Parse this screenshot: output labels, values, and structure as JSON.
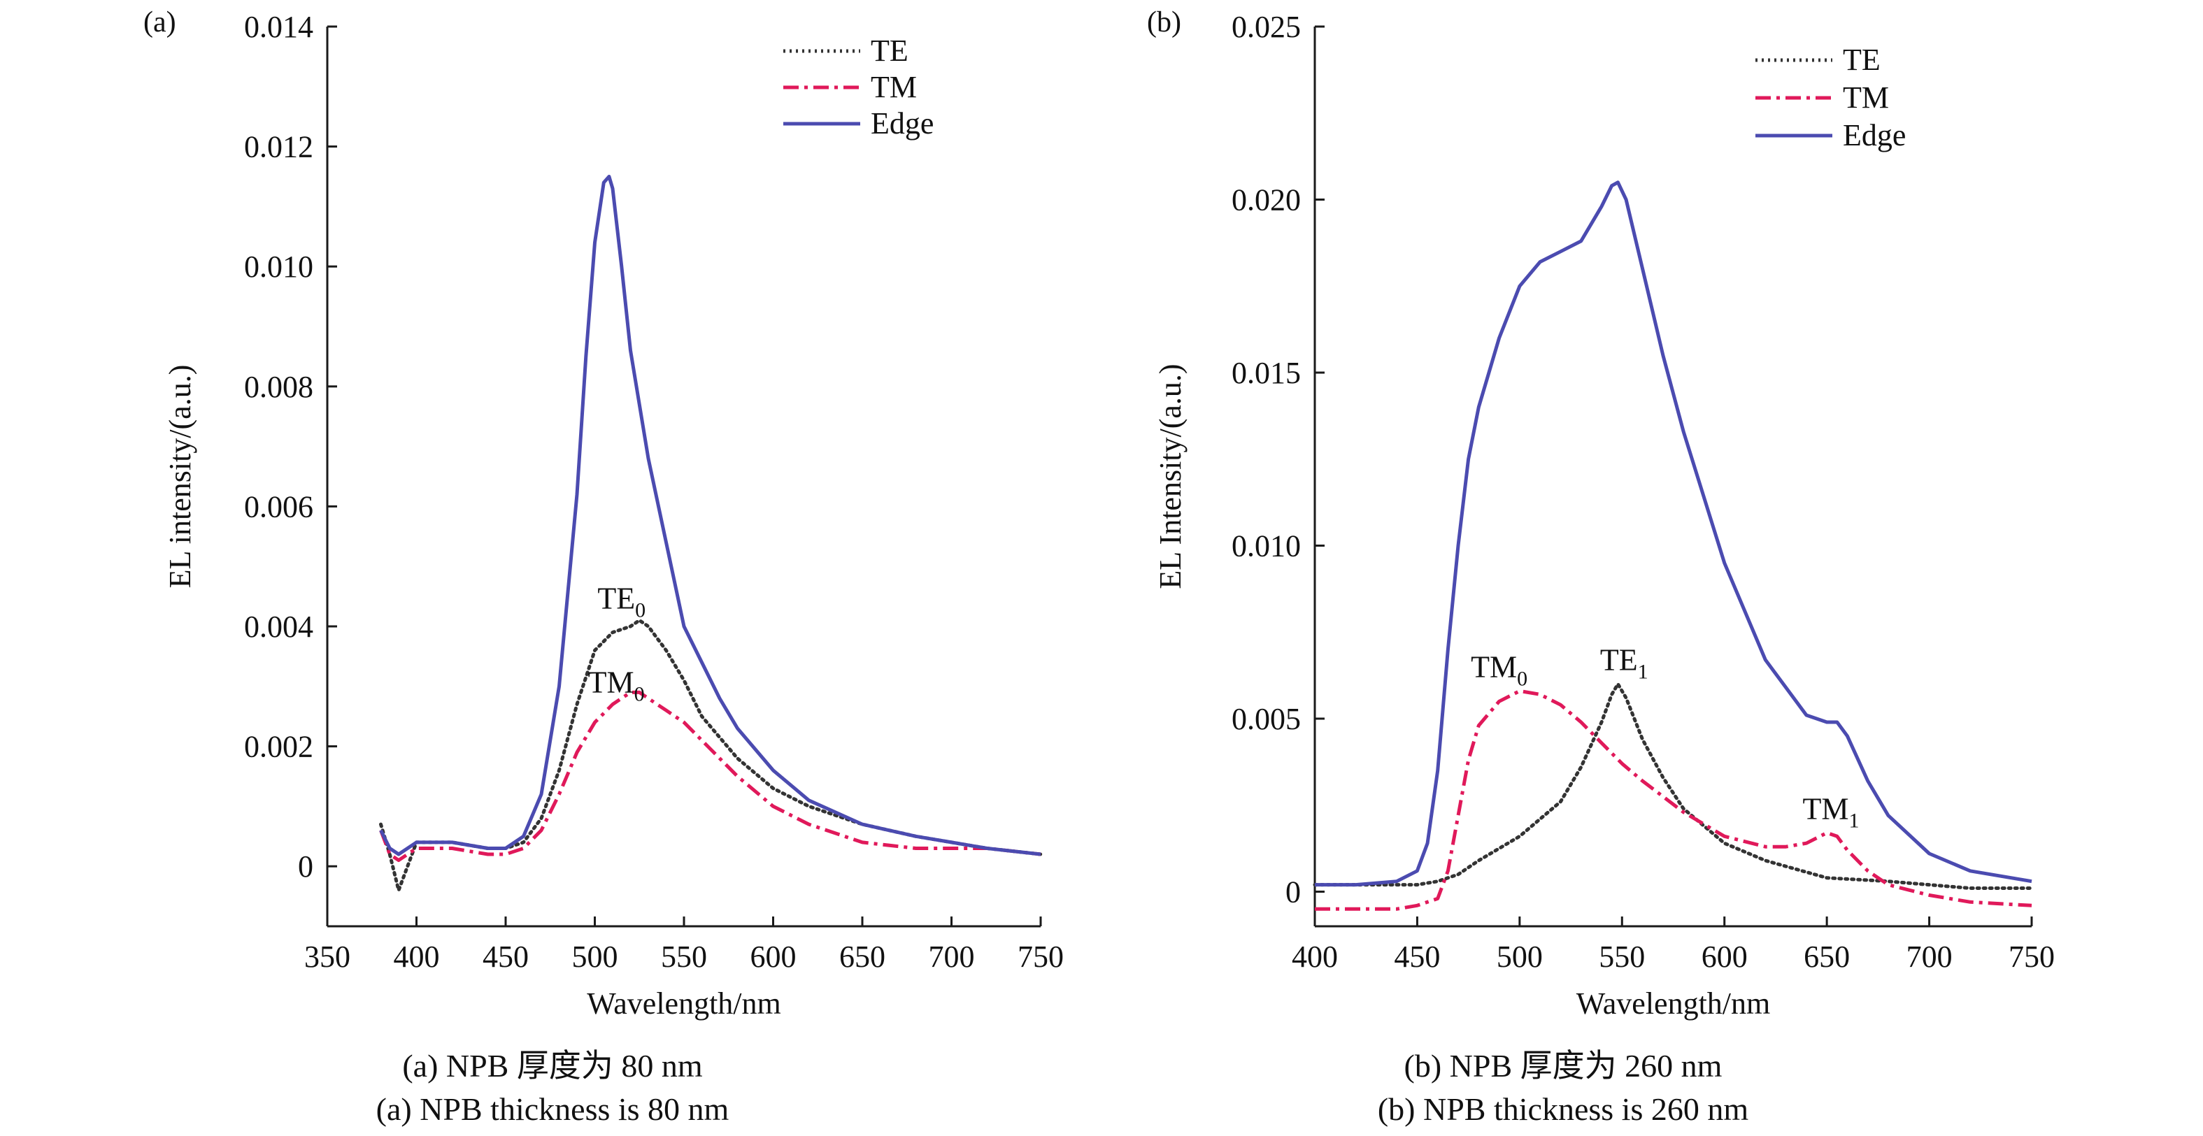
{
  "chart_data": [
    {
      "type": "line",
      "panel_label": "(a)",
      "xlabel": "Wavelength/nm",
      "ylabel": "EL intensity/(a.u.)",
      "xlim": [
        350,
        750
      ],
      "ylim": [
        -0.001,
        0.014
      ],
      "xticks": [
        "350",
        "400",
        "450",
        "500",
        "550",
        "600",
        "650",
        "700",
        "750"
      ],
      "xtick_values": [
        350,
        400,
        450,
        500,
        550,
        600,
        650,
        700,
        750
      ],
      "yticks": [
        "0",
        "0.002",
        "0.004",
        "0.006",
        "0.008",
        "0.010",
        "0.012",
        "0.014"
      ],
      "ytick_values": [
        0,
        0.002,
        0.004,
        0.006,
        0.008,
        0.01,
        0.012,
        0.014
      ],
      "grid": false,
      "legend": "top-right",
      "series": [
        {
          "name": "TE",
          "color": "#333333",
          "style": "dotted",
          "x": [
            380,
            385,
            390,
            400,
            420,
            440,
            450,
            460,
            470,
            480,
            490,
            500,
            510,
            520,
            525,
            530,
            540,
            550,
            560,
            580,
            600,
            620,
            650,
            680,
            700,
            720,
            750
          ],
          "y": [
            0.0007,
            0.0002,
            -0.0004,
            0.0004,
            0.0004,
            0.0003,
            0.0003,
            0.0004,
            0.0008,
            0.0016,
            0.0027,
            0.0036,
            0.0039,
            0.004,
            0.0041,
            0.004,
            0.0036,
            0.0031,
            0.0025,
            0.0018,
            0.0013,
            0.001,
            0.0007,
            0.0005,
            0.0004,
            0.0003,
            0.0002
          ]
        },
        {
          "name": "TM",
          "color": "#e0195a",
          "style": "dashdot",
          "x": [
            380,
            385,
            390,
            400,
            420,
            440,
            450,
            460,
            470,
            480,
            490,
            500,
            510,
            520,
            525,
            530,
            540,
            550,
            560,
            580,
            600,
            620,
            650,
            680,
            700,
            720,
            750
          ],
          "y": [
            0.0006,
            0.0002,
            0.0001,
            0.0003,
            0.0003,
            0.0002,
            0.0002,
            0.0003,
            0.0006,
            0.0012,
            0.0019,
            0.0024,
            0.0027,
            0.0029,
            0.0029,
            0.0028,
            0.0026,
            0.0024,
            0.0021,
            0.0015,
            0.001,
            0.0007,
            0.0004,
            0.0003,
            0.0003,
            0.0003,
            0.0002
          ]
        },
        {
          "name": "Edge",
          "color": "#4b4bb0",
          "style": "solid",
          "x": [
            380,
            385,
            390,
            400,
            420,
            440,
            450,
            460,
            470,
            480,
            490,
            495,
            500,
            505,
            508,
            510,
            515,
            520,
            530,
            540,
            550,
            560,
            570,
            580,
            600,
            620,
            650,
            680,
            700,
            720,
            750
          ],
          "y": [
            0.0006,
            0.0003,
            0.0002,
            0.0004,
            0.0004,
            0.0003,
            0.0003,
            0.0005,
            0.0012,
            0.003,
            0.0062,
            0.0085,
            0.0104,
            0.0114,
            0.0115,
            0.0113,
            0.01,
            0.0086,
            0.0068,
            0.0054,
            0.004,
            0.0034,
            0.0028,
            0.0023,
            0.0016,
            0.0011,
            0.0007,
            0.0005,
            0.0004,
            0.0003,
            0.0002
          ]
        }
      ],
      "annotations": [
        {
          "text": "TE",
          "sub": "0",
          "x": 515,
          "y": 0.0043
        },
        {
          "text": "TM",
          "sub": "0",
          "x": 512,
          "y": 0.0029
        }
      ]
    },
    {
      "type": "line",
      "panel_label": "(b)",
      "xlabel": "Wavelength/nm",
      "ylabel": "EL Intensity/(a.u.)",
      "xlim": [
        400,
        750
      ],
      "ylim": [
        -0.001,
        0.025
      ],
      "xticks": [
        "400",
        "450",
        "500",
        "550",
        "600",
        "650",
        "700",
        "750"
      ],
      "xtick_values": [
        400,
        450,
        500,
        550,
        600,
        650,
        700,
        750
      ],
      "yticks": [
        "0",
        "0.005",
        "0.010",
        "0.015",
        "0.020",
        "0.025"
      ],
      "ytick_values": [
        0,
        0.005,
        0.01,
        0.015,
        0.02,
        0.025
      ],
      "grid": false,
      "legend": "top-right",
      "series": [
        {
          "name": "TE",
          "color": "#333333",
          "style": "dotted",
          "x": [
            400,
            420,
            440,
            450,
            460,
            470,
            480,
            500,
            520,
            530,
            540,
            545,
            548,
            552,
            560,
            570,
            580,
            600,
            620,
            650,
            680,
            700,
            720,
            750
          ],
          "y": [
            0.0002,
            0.0002,
            0.0002,
            0.0002,
            0.0003,
            0.0005,
            0.0009,
            0.0016,
            0.0026,
            0.0036,
            0.0049,
            0.0057,
            0.006,
            0.0056,
            0.0044,
            0.0033,
            0.0024,
            0.0014,
            0.0009,
            0.0004,
            0.0003,
            0.0002,
            0.0001,
            0.0001
          ]
        },
        {
          "name": "TM",
          "color": "#e0195a",
          "style": "dashdot",
          "x": [
            400,
            420,
            440,
            450,
            460,
            465,
            470,
            475,
            480,
            490,
            500,
            510,
            520,
            530,
            540,
            550,
            560,
            580,
            600,
            620,
            630,
            640,
            650,
            655,
            660,
            670,
            680,
            700,
            720,
            750
          ],
          "y": [
            -0.0005,
            -0.0005,
            -0.0005,
            -0.0004,
            -0.0002,
            0.0006,
            0.0022,
            0.0038,
            0.0048,
            0.0055,
            0.0058,
            0.0057,
            0.0054,
            0.0049,
            0.0043,
            0.0037,
            0.0032,
            0.0023,
            0.0016,
            0.0013,
            0.0013,
            0.0014,
            0.0017,
            0.0016,
            0.0012,
            0.0006,
            0.0002,
            -0.0001,
            -0.0003,
            -0.0004
          ]
        },
        {
          "name": "Edge",
          "color": "#4b4bb0",
          "style": "solid",
          "x": [
            400,
            420,
            440,
            450,
            455,
            460,
            465,
            470,
            475,
            480,
            490,
            500,
            510,
            520,
            530,
            540,
            545,
            548,
            552,
            560,
            570,
            580,
            600,
            620,
            640,
            650,
            655,
            660,
            670,
            680,
            700,
            720,
            750
          ],
          "y": [
            0.0002,
            0.0002,
            0.0003,
            0.0006,
            0.0014,
            0.0035,
            0.007,
            0.01,
            0.0125,
            0.014,
            0.016,
            0.0175,
            0.0182,
            0.0185,
            0.0188,
            0.0198,
            0.0204,
            0.0205,
            0.02,
            0.018,
            0.0155,
            0.0133,
            0.0095,
            0.0067,
            0.0051,
            0.0049,
            0.0049,
            0.0045,
            0.0032,
            0.0022,
            0.0011,
            0.0006,
            0.0003
          ]
        }
      ],
      "annotations": [
        {
          "text": "TM",
          "sub": "0",
          "x": 490,
          "y": 0.0062
        },
        {
          "text": "TE",
          "sub": "1",
          "x": 551,
          "y": 0.0064
        },
        {
          "text": "TM",
          "sub": "1",
          "x": 652,
          "y": 0.0021
        }
      ]
    }
  ],
  "captions": {
    "a_line1": "(a) NPB 厚度为 80 nm",
    "a_line2": "(a) NPB thickness is 80 nm",
    "b_line1": "(b) NPB 厚度为 260 nm",
    "b_line2": "(b) NPB thickness is 260 nm"
  }
}
